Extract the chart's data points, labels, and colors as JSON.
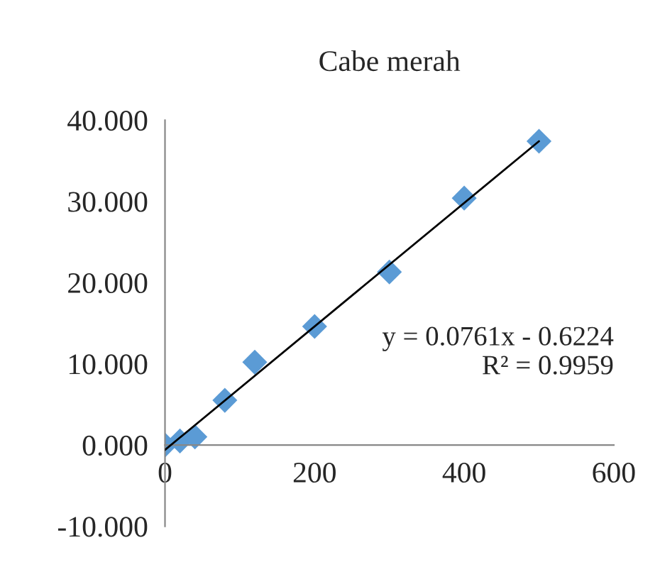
{
  "chart_data": {
    "type": "scatter",
    "title": "Cabe merah",
    "marker": "diamond",
    "grid": false,
    "legend": false,
    "series": [
      {
        "color": "#5b9bd5",
        "x": [
          0,
          20,
          40,
          80,
          120,
          200,
          300,
          400,
          500
        ],
        "values": [
          0,
          0.5,
          1,
          5.5,
          10.2,
          14.6,
          21.3,
          30.4,
          37.4
        ]
      },
      {
        "type": "line",
        "color": "#000000",
        "marker": "none",
        "x": [
          0,
          500
        ],
        "values": [
          -0.6,
          37.4
        ]
      }
    ],
    "annotations": [
      "y = 0.0761x - 0.6224\nR² = 0.9959"
    ],
    "xlim": [
      0,
      600
    ],
    "xticks": [
      0,
      200,
      400,
      600
    ],
    "ylim": [
      -10,
      40
    ],
    "yticks": [
      {
        "value": -10,
        "label": "-10.000"
      },
      {
        "value": 0,
        "label": "0.000"
      },
      {
        "value": 10,
        "label": "10.000"
      },
      {
        "value": 20,
        "label": "20.000"
      },
      {
        "value": 30,
        "label": "30.000"
      },
      {
        "value": 40,
        "label": "40.000"
      }
    ]
  }
}
